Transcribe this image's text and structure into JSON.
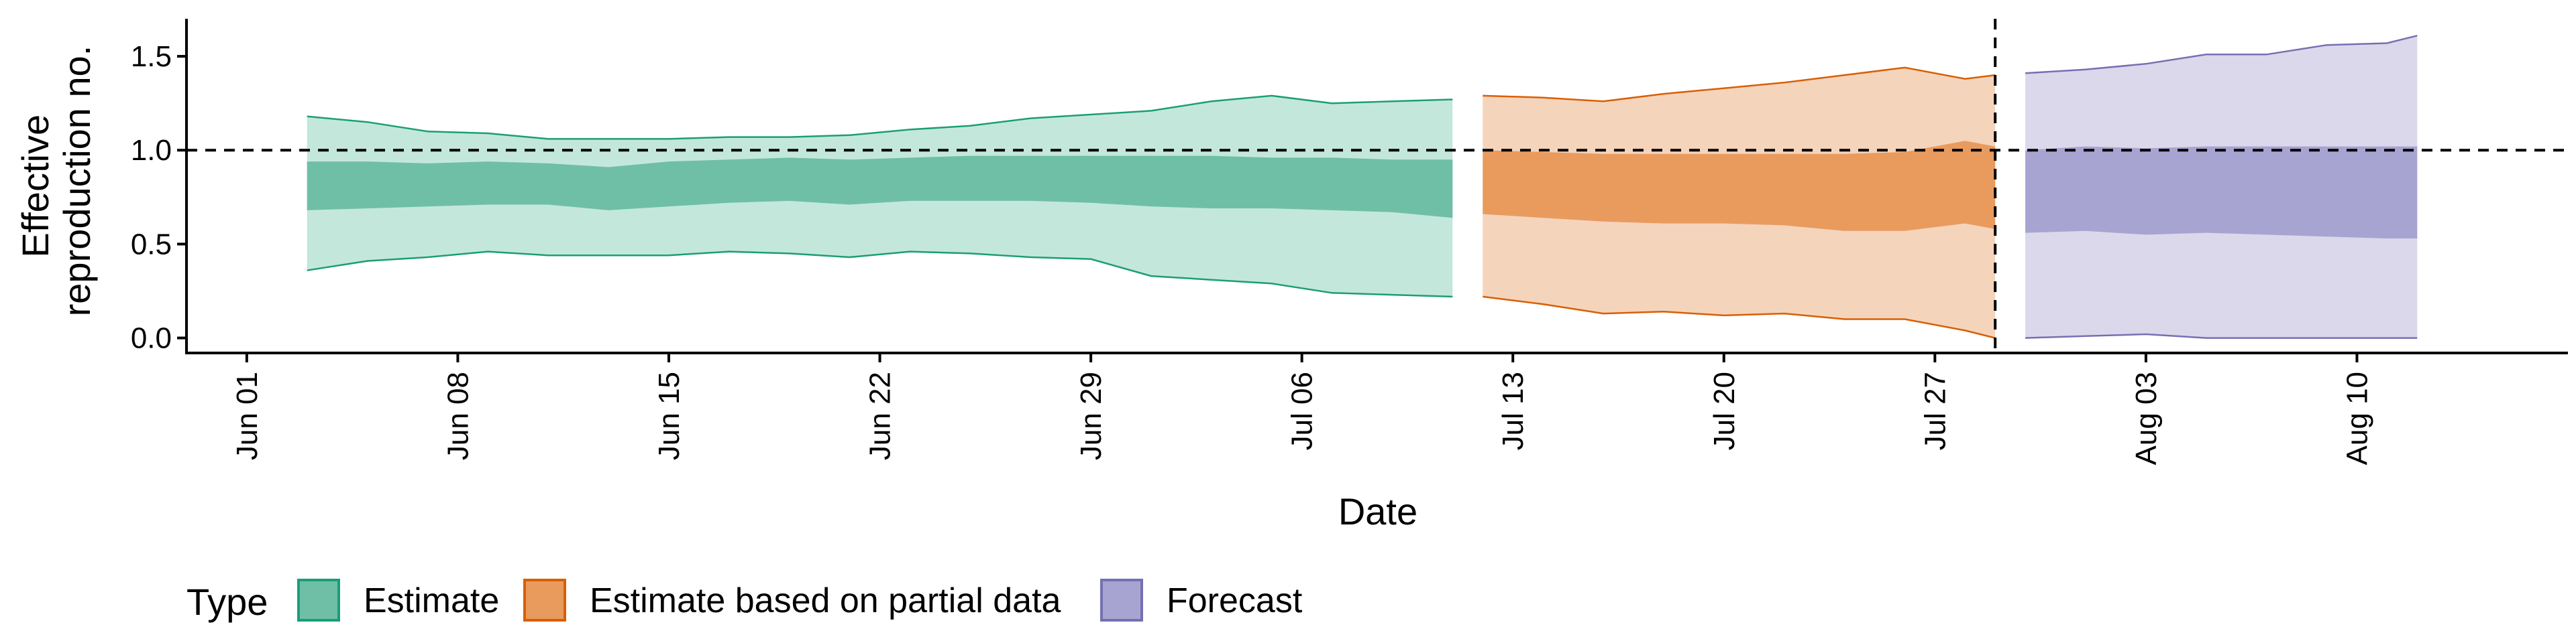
{
  "chart_data": {
    "type": "area",
    "xlabel": "Date",
    "ylabel": "Effective reproduction no.",
    "ylabel_lines": [
      "Effective",
      "reproduction no."
    ],
    "x_range": [
      "2021-05-30",
      "2021-08-17"
    ],
    "ylim": [
      -0.08,
      1.7
    ],
    "y_ticks": [
      {
        "value": 0.0,
        "label": "0.0"
      },
      {
        "value": 0.5,
        "label": "0.5"
      },
      {
        "value": 1.0,
        "label": "1.0"
      },
      {
        "value": 1.5,
        "label": "1.5"
      }
    ],
    "x_ticks": [
      {
        "date": "2021-06-01",
        "label": "Jun 01"
      },
      {
        "date": "2021-06-08",
        "label": "Jun 08"
      },
      {
        "date": "2021-06-15",
        "label": "Jun 15"
      },
      {
        "date": "2021-06-22",
        "label": "Jun 22"
      },
      {
        "date": "2021-06-29",
        "label": "Jun 29"
      },
      {
        "date": "2021-07-06",
        "label": "Jul 06"
      },
      {
        "date": "2021-07-13",
        "label": "Jul 13"
      },
      {
        "date": "2021-07-20",
        "label": "Jul 20"
      },
      {
        "date": "2021-07-27",
        "label": "Jul 27"
      },
      {
        "date": "2021-08-03",
        "label": "Aug 03"
      },
      {
        "date": "2021-08-10",
        "label": "Aug 10"
      }
    ],
    "reference_lines": {
      "horizontal_y": 1.0,
      "vertical_date": "2021-07-29"
    },
    "legend": {
      "title": "Type",
      "position": "bottom",
      "entries": [
        {
          "label": "Estimate",
          "fill": "#6fbfa6",
          "stroke": "#1b9e77"
        },
        {
          "label": "Estimate based on partial data",
          "fill": "#e99b5e",
          "stroke": "#d95f02"
        },
        {
          "label": "Forecast",
          "fill": "#a8a4d1",
          "stroke": "#7570b3"
        }
      ]
    },
    "series": [
      {
        "name": "Estimate",
        "outer_fill": "#c4e7dc",
        "inner_fill": "#6fbfa6",
        "line_color": "#1b9e77",
        "dates": [
          "2021-06-03",
          "2021-06-05",
          "2021-06-07",
          "2021-06-09",
          "2021-06-11",
          "2021-06-13",
          "2021-06-15",
          "2021-06-17",
          "2021-06-19",
          "2021-06-21",
          "2021-06-23",
          "2021-06-25",
          "2021-06-27",
          "2021-06-29",
          "2021-07-01",
          "2021-07-03",
          "2021-07-05",
          "2021-07-07",
          "2021-07-09",
          "2021-07-11"
        ],
        "lower90": [
          0.36,
          0.41,
          0.43,
          0.46,
          0.44,
          0.44,
          0.44,
          0.46,
          0.45,
          0.43,
          0.46,
          0.45,
          0.43,
          0.42,
          0.33,
          0.31,
          0.29,
          0.24,
          0.23,
          0.22
        ],
        "lower50": [
          0.68,
          0.69,
          0.7,
          0.71,
          0.71,
          0.68,
          0.7,
          0.72,
          0.73,
          0.71,
          0.73,
          0.73,
          0.73,
          0.72,
          0.7,
          0.69,
          0.69,
          0.68,
          0.67,
          0.64
        ],
        "upper50": [
          0.94,
          0.94,
          0.93,
          0.94,
          0.93,
          0.91,
          0.94,
          0.95,
          0.96,
          0.95,
          0.96,
          0.97,
          0.97,
          0.97,
          0.97,
          0.97,
          0.96,
          0.96,
          0.95,
          0.95
        ],
        "upper90": [
          1.18,
          1.15,
          1.1,
          1.09,
          1.06,
          1.06,
          1.06,
          1.07,
          1.07,
          1.08,
          1.11,
          1.13,
          1.17,
          1.19,
          1.21,
          1.26,
          1.29,
          1.25,
          1.26,
          1.27
        ]
      },
      {
        "name": "Estimate based on partial data",
        "outer_fill": "#f5d4bc",
        "inner_fill": "#e99b5e",
        "line_color": "#d95f02",
        "dates": [
          "2021-07-12",
          "2021-07-14",
          "2021-07-16",
          "2021-07-18",
          "2021-07-20",
          "2021-07-22",
          "2021-07-24",
          "2021-07-26",
          "2021-07-28",
          "2021-07-29"
        ],
        "lower90": [
          0.22,
          0.18,
          0.13,
          0.14,
          0.12,
          0.13,
          0.1,
          0.1,
          0.04,
          0.0
        ],
        "lower50": [
          0.66,
          0.64,
          0.62,
          0.61,
          0.61,
          0.6,
          0.57,
          0.57,
          0.61,
          0.58
        ],
        "upper50": [
          1.0,
          0.99,
          0.98,
          0.98,
          0.98,
          0.98,
          0.98,
          0.99,
          1.05,
          1.02
        ],
        "upper90": [
          1.29,
          1.28,
          1.26,
          1.3,
          1.33,
          1.36,
          1.4,
          1.44,
          1.38,
          1.4
        ]
      },
      {
        "name": "Forecast",
        "outer_fill": "#dad8ea",
        "inner_fill": "#a8a4d1",
        "line_color": "#7570b3",
        "dates": [
          "2021-07-30",
          "2021-08-01",
          "2021-08-03",
          "2021-08-05",
          "2021-08-07",
          "2021-08-09",
          "2021-08-11",
          "2021-08-12"
        ],
        "lower90": [
          0.0,
          0.01,
          0.02,
          0.0,
          0.0,
          0.0,
          0.0,
          0.0
        ],
        "lower50": [
          0.56,
          0.57,
          0.55,
          0.56,
          0.55,
          0.54,
          0.53,
          0.53
        ],
        "upper50": [
          1.0,
          1.02,
          1.01,
          1.02,
          1.02,
          1.02,
          1.02,
          1.02
        ],
        "upper90": [
          1.41,
          1.43,
          1.46,
          1.51,
          1.51,
          1.56,
          1.57,
          1.61
        ]
      }
    ]
  }
}
